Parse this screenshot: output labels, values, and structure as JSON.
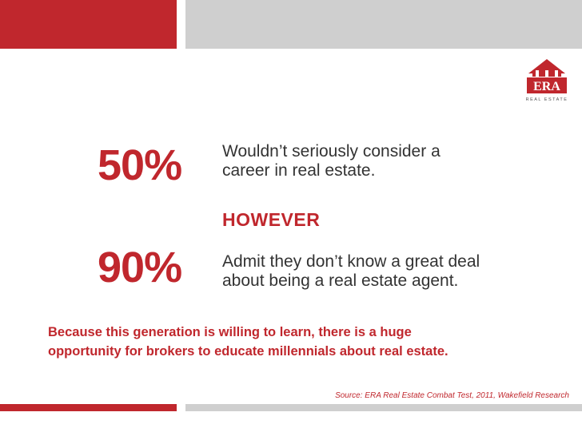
{
  "colors": {
    "accent": "#c0272d",
    "gray_bar": "#cfcfcf",
    "body_text": "#333333"
  },
  "logo": {
    "icon": "house-roof-icon",
    "brand": "ERA",
    "tagline": "REAL ESTATE"
  },
  "stats": [
    {
      "value": "50%",
      "line1": "Wouldn’t seriously consider a",
      "line2": "career in real estate."
    },
    {
      "value": "90%",
      "line1": "Admit they don’t know a great deal",
      "line2": "about being a real estate agent."
    }
  ],
  "however": "HOWEVER",
  "conclusion": {
    "line1": "Because this generation is willing to learn, there is a huge",
    "line2": "opportunity for brokers to educate millennials about real estate."
  },
  "source": "Source: ERA Real Estate Combat Test, 2011, Wakefield Research"
}
